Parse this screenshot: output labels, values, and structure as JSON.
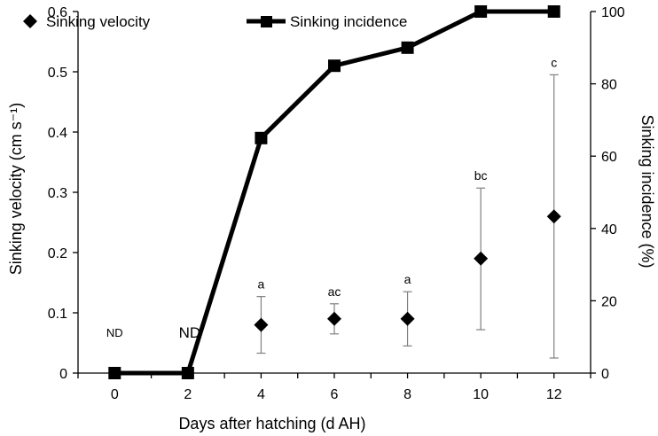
{
  "chart_data": {
    "type": "line",
    "xlabel": "Days after hatching (d AH)",
    "ylabel_left": "Sinking velocity (cm s⁻¹)",
    "ylabel_right": "Sinking incidence (%)",
    "x": [
      0,
      2,
      4,
      6,
      8,
      10,
      12
    ],
    "x_ticks": [
      "0",
      "2",
      "4",
      "6",
      "8",
      "10",
      "12"
    ],
    "ylim_left": [
      0,
      0.6
    ],
    "y_ticks_left": [
      "0",
      "0.1",
      "0.2",
      "0.3",
      "0.4",
      "0.5",
      "0.6"
    ],
    "ylim_right": [
      0,
      100
    ],
    "y_ticks_right": [
      "0",
      "20",
      "40",
      "60",
      "80",
      "100"
    ],
    "grid": false,
    "legend_position": "top",
    "series": [
      {
        "name": "Sinking velocity",
        "axis": "left",
        "marker": "diamond",
        "line": false,
        "x": [
          4,
          6,
          8,
          10,
          12
        ],
        "values": [
          0.08,
          0.09,
          0.09,
          0.19,
          0.26
        ],
        "error_low": [
          0.033,
          0.065,
          0.045,
          0.072,
          0.025
        ],
        "error_high": [
          0.127,
          0.115,
          0.135,
          0.307,
          0.495
        ],
        "annotations": [
          "a",
          "ac",
          "a",
          "bc",
          "c"
        ]
      },
      {
        "name": "Sinking incidence",
        "axis": "right",
        "marker": "square",
        "line": true,
        "x": [
          0,
          2,
          4,
          6,
          8,
          10,
          12
        ],
        "values": [
          0,
          0,
          65,
          85,
          90,
          100,
          100
        ]
      }
    ],
    "nd_labels": [
      {
        "text": "ND",
        "x": 0,
        "size": "small"
      },
      {
        "text": "ND",
        "x": 2,
        "size": "large"
      }
    ],
    "colors": {
      "series": "#000000",
      "error_bar": "#808080",
      "axis": "#000000"
    }
  }
}
